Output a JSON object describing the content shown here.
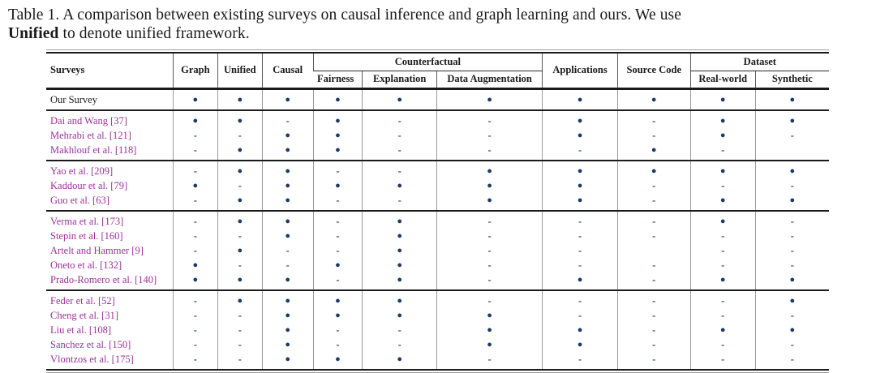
{
  "caption": {
    "line1": "Table 1.  A comparison between existing surveys on causal inference and graph learning and ours. We use",
    "line2_bold": "Unified",
    "line2_rest": " to denote unified framework."
  },
  "colors": {
    "bullet": "#1c3968",
    "citation_link": "#993399",
    "rule": "#1a1a1a",
    "grid_line": "#9a9a9a",
    "text": "#1a1a1a"
  },
  "glyphs": {
    "dot": "●",
    "dash": "-",
    "blank": ""
  },
  "columns": [
    "graph",
    "unified",
    "causal",
    "fairness",
    "explanation",
    "data-augmentation",
    "applications",
    "source-code",
    "real-world",
    "synthetic"
  ],
  "header": {
    "surveys": "Surveys",
    "graph": "Graph",
    "unified": "Unified",
    "causal": "Causal",
    "counterfactual": "Counterfactual",
    "fairness": "Fairness",
    "explanation": "Explanation",
    "data_augmentation": "Data Augmentation",
    "applications": "Applications",
    "source_code": "Source Code",
    "dataset": "Dataset",
    "real_world": "Real-world",
    "synthetic": "Synthetic"
  },
  "groups": [
    {
      "rows": [
        {
          "name": "Our Survey",
          "cite": false,
          "cells": [
            "dot",
            "dot",
            "dot",
            "dot",
            "dot",
            "dot",
            "dot",
            "dot",
            "dot",
            "dot"
          ]
        }
      ]
    },
    {
      "rows": [
        {
          "name": "Dai and Wang [37]",
          "cite": true,
          "cells": [
            "dot",
            "dot",
            "dash",
            "dot",
            "dash",
            "dash",
            "dot",
            "dash",
            "dot",
            "dot"
          ]
        },
        {
          "name": "Mehrabi et al. [121]",
          "cite": true,
          "cells": [
            "dash",
            "dash",
            "dot",
            "dot",
            "dash",
            "dash",
            "dot",
            "dash",
            "dot",
            "dash"
          ]
        },
        {
          "name": "Makhlouf et al. [118]",
          "cite": true,
          "cells": [
            "dash",
            "dot",
            "dot",
            "dot",
            "dash",
            "dash",
            "dash",
            "dot",
            "dash",
            "blank"
          ]
        }
      ]
    },
    {
      "rows": [
        {
          "name": "Yao et al. [209]",
          "cite": true,
          "cells": [
            "dash",
            "dot",
            "dot",
            "dash",
            "dash",
            "dot",
            "dot",
            "dot",
            "dot",
            "dot"
          ]
        },
        {
          "name": "Kaddour et al. [79]",
          "cite": true,
          "cells": [
            "dot",
            "dash",
            "dot",
            "dot",
            "dot",
            "dot",
            "dot",
            "dash",
            "dash",
            "dash"
          ]
        },
        {
          "name": "Guo et al. [63]",
          "cite": true,
          "cells": [
            "dash",
            "dot",
            "dot",
            "dash",
            "dash",
            "dot",
            "dot",
            "dash",
            "dot",
            "dot"
          ]
        }
      ]
    },
    {
      "rows": [
        {
          "name": "Verma et al. [173]",
          "cite": true,
          "cells": [
            "dash",
            "dot",
            "dot",
            "dash",
            "dot",
            "dash",
            "dash",
            "dash",
            "dot",
            "dash"
          ]
        },
        {
          "name": "Stepin et al. [160]",
          "cite": true,
          "cells": [
            "dash",
            "dash",
            "dot",
            "dash",
            "dot",
            "dash",
            "dash",
            "dash",
            "dash",
            "dash"
          ]
        },
        {
          "name": "Artelt and Hammer [9]",
          "cite": true,
          "cells": [
            "dash",
            "dot",
            "dash",
            "dash",
            "dot",
            "dash",
            "dash",
            "blank",
            "dash",
            "dash"
          ]
        },
        {
          "name": "Oneto et al. [132]",
          "cite": true,
          "cells": [
            "dot",
            "dash",
            "dash",
            "dot",
            "dot",
            "dash",
            "dash",
            "dash",
            "dash",
            "dash"
          ]
        },
        {
          "name": "Prado-Romero et al. [140]",
          "cite": true,
          "cells": [
            "dot",
            "dot",
            "dot",
            "dash",
            "dot",
            "dash",
            "dot",
            "dash",
            "dot",
            "dot"
          ]
        }
      ]
    },
    {
      "rows": [
        {
          "name": "Feder et al. [52]",
          "cite": true,
          "cells": [
            "dash",
            "dot",
            "dot",
            "dot",
            "dot",
            "dash",
            "dash",
            "dash",
            "dash",
            "dot"
          ]
        },
        {
          "name": "Cheng et al. [31]",
          "cite": true,
          "cells": [
            "dash",
            "dash",
            "dot",
            "dot",
            "dot",
            "dot",
            "dash",
            "dash",
            "dash",
            "dash"
          ]
        },
        {
          "name": "Liu et al. [108]",
          "cite": true,
          "cells": [
            "dash",
            "dash",
            "dot",
            "dash",
            "dash",
            "dot",
            "dot",
            "dash",
            "dot",
            "dot"
          ]
        },
        {
          "name": "Sanchez et al. [150]",
          "cite": true,
          "cells": [
            "dash",
            "dash",
            "dot",
            "dash",
            "dash",
            "dot",
            "dot",
            "dash",
            "dash",
            "dash"
          ]
        },
        {
          "name": "Vlontzos et al. [175]",
          "cite": true,
          "cells": [
            "dash",
            "dash",
            "dot",
            "dot",
            "dot",
            "dash",
            "dash",
            "dash",
            "dash",
            "dash"
          ]
        }
      ]
    }
  ]
}
